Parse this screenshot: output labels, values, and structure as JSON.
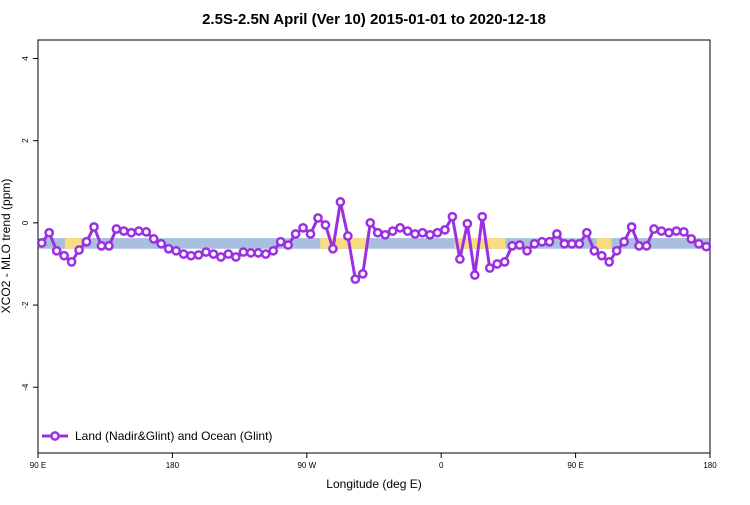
{
  "chart_data": {
    "type": "line",
    "title": "2.5S-2.5N April (Ver 10)   2015-01-01 to 2020-12-18",
    "x_label": "Longitude (deg E)",
    "y_label": "XCO2 - MLO trend (ppm)",
    "xlim": [
      90,
      540
    ],
    "ylim": [
      -5.6,
      4.45
    ],
    "xticks": [
      {
        "value": 90,
        "label": "90 E"
      },
      {
        "value": 180,
        "label": "180"
      },
      {
        "value": 270,
        "label": "90 W"
      },
      {
        "value": 360,
        "label": "0"
      },
      {
        "value": 450,
        "label": "90 E"
      },
      {
        "value": 540,
        "label": "180"
      }
    ],
    "yticks": [
      -4,
      -2,
      0,
      2,
      4
    ],
    "band_ylim": [
      -0.63,
      -0.37
    ],
    "band_color": "#a9bfe0",
    "land_segments": [
      [
        108,
        119
      ],
      [
        279,
        311
      ],
      [
        369,
        403
      ],
      [
        464,
        474
      ]
    ],
    "land_color": "#f7dc82",
    "legend_position": "bottom-left",
    "x": [
      92.5,
      97.5,
      102.5,
      107.5,
      112.5,
      117.5,
      122.5,
      127.5,
      132.5,
      137.5,
      142.5,
      147.5,
      152.5,
      157.5,
      162.5,
      167.5,
      172.5,
      177.5,
      182.5,
      187.5,
      192.5,
      197.5,
      202.5,
      207.5,
      212.5,
      217.5,
      222.5,
      227.5,
      232.5,
      237.5,
      242.5,
      247.5,
      252.5,
      257.5,
      262.5,
      267.5,
      272.5,
      277.5,
      282.5,
      287.5,
      292.5,
      297.5,
      302.5,
      307.5,
      312.5,
      317.5,
      322.5,
      327.5,
      332.5,
      337.5,
      342.5,
      347.5,
      352.5,
      357.5,
      362.5,
      367.5,
      372.5,
      377.5,
      382.5,
      387.5,
      392.5,
      397.5,
      402.5,
      407.5,
      412.5,
      417.5,
      422.5,
      427.5,
      432.5,
      437.5,
      442.5,
      447.5,
      452.5,
      457.5,
      462.5,
      467.5,
      472.5,
      477.5,
      482.5,
      487.5,
      492.5,
      497.5,
      502.5,
      507.5,
      512.5,
      517.5,
      522.5,
      527.5,
      532.5,
      537.5
    ],
    "series": [
      {
        "name": "Land (Nadir&Glint) and Ocean (Glint)",
        "color": "#9b30e0",
        "values": [
          -0.49,
          -0.24,
          -0.68,
          -0.8,
          -0.95,
          -0.66,
          -0.46,
          -0.1,
          -0.56,
          -0.56,
          -0.15,
          -0.2,
          -0.24,
          -0.2,
          -0.22,
          -0.39,
          -0.51,
          -0.63,
          -0.68,
          -0.76,
          -0.8,
          -0.78,
          -0.71,
          -0.76,
          -0.83,
          -0.76,
          -0.83,
          -0.71,
          -0.73,
          -0.73,
          -0.76,
          -0.68,
          -0.46,
          -0.54,
          -0.27,
          -0.12,
          -0.27,
          0.12,
          -0.05,
          -0.63,
          0.51,
          -0.32,
          -1.37,
          -1.24,
          0,
          -0.24,
          -0.29,
          -0.2,
          -0.12,
          -0.2,
          -0.27,
          -0.24,
          -0.29,
          -0.24,
          -0.17,
          0.15,
          -0.88,
          -0.02,
          -1.27,
          0.15,
          -1.1,
          -1.0,
          -0.95,
          -0.56,
          -0.54,
          -0.68,
          -0.51,
          -0.46,
          -0.46,
          -0.27,
          -0.51,
          -0.51,
          -0.51,
          -0.24,
          -0.68,
          -0.8,
          -0.95,
          -0.68,
          -0.46,
          -0.1,
          -0.56,
          -0.56,
          -0.15,
          -0.2,
          -0.24,
          -0.2,
          -0.22,
          -0.39,
          -0.51,
          -0.58
        ]
      }
    ]
  }
}
